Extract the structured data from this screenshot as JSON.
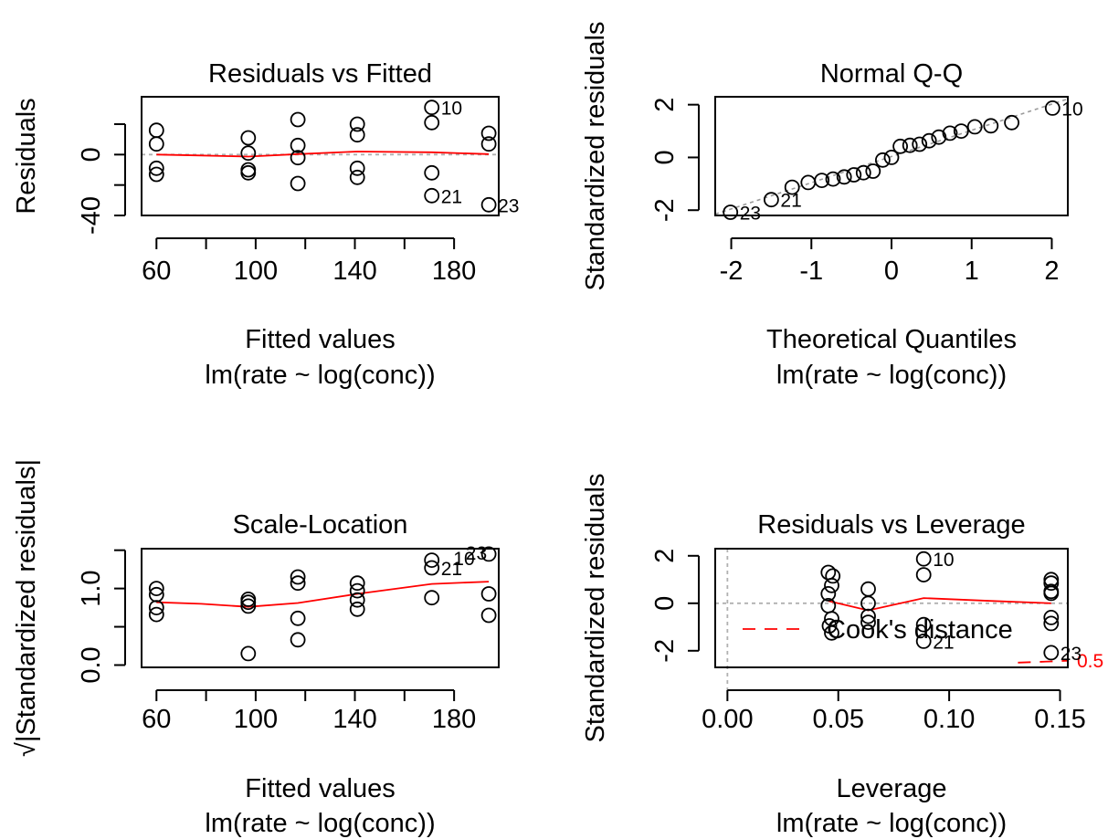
{
  "chart_data": [
    {
      "type": "scatter",
      "title": "Residuals vs Fitted",
      "xlabel": "Fitted values",
      "sublabel": "lm(rate ~ log(conc))",
      "ylabel": "Residuals",
      "xlim": [
        54,
        198
      ],
      "ylim": [
        -40,
        38
      ],
      "xticks": [
        60,
        80,
        100,
        120,
        140,
        160,
        180
      ],
      "xtick_labels": [
        "60",
        "",
        "100",
        "",
        "140",
        "",
        "180"
      ],
      "yticks": [
        -40,
        -20,
        0,
        20
      ],
      "ytick_labels": [
        "-40",
        "",
        "0",
        ""
      ],
      "points": [
        [
          60,
          16
        ],
        [
          60,
          7
        ],
        [
          60,
          -9
        ],
        [
          60,
          -13
        ],
        [
          97,
          11
        ],
        [
          97,
          1
        ],
        [
          97,
          -10
        ],
        [
          97,
          -12
        ],
        [
          117,
          23
        ],
        [
          117,
          6
        ],
        [
          117,
          -2
        ],
        [
          117,
          -19
        ],
        [
          141,
          20
        ],
        [
          141,
          13
        ],
        [
          141,
          -9
        ],
        [
          141,
          -15
        ],
        [
          171,
          31
        ],
        [
          171,
          21
        ],
        [
          171,
          -12
        ],
        [
          171,
          -27
        ],
        [
          194,
          14
        ],
        [
          194,
          7
        ],
        [
          194,
          -33
        ]
      ],
      "labels": [
        {
          "text": "10",
          "x": 171,
          "y": 31
        },
        {
          "text": "21",
          "x": 171,
          "y": -27
        },
        {
          "text": "23",
          "x": 194,
          "y": -33
        }
      ],
      "smooth": [
        [
          60,
          0
        ],
        [
          78,
          -0.6
        ],
        [
          97,
          -1.3
        ],
        [
          117,
          0.3
        ],
        [
          141,
          2
        ],
        [
          171,
          1.5
        ],
        [
          194,
          0.3
        ]
      ],
      "refline": 0
    },
    {
      "type": "scatter",
      "title": "Normal Q-Q",
      "xlabel": "Theoretical Quantiles",
      "sublabel": "lm(rate ~ log(conc))",
      "ylabel": "Standardized residuals",
      "xlim": [
        -2.2,
        2.2
      ],
      "ylim": [
        -2.2,
        2.3
      ],
      "xticks": [
        -2,
        -1,
        0,
        1,
        2
      ],
      "xtick_labels": [
        "-2",
        "-1",
        "0",
        "1",
        "2"
      ],
      "yticks": [
        -2,
        0,
        2
      ],
      "ytick_labels": [
        "-2",
        "0",
        "2"
      ],
      "points": [
        [
          -2.01,
          -2.08
        ],
        [
          -1.5,
          -1.6
        ],
        [
          -1.24,
          -1.13
        ],
        [
          -1.04,
          -0.95
        ],
        [
          -0.87,
          -0.87
        ],
        [
          -0.73,
          -0.82
        ],
        [
          -0.59,
          -0.74
        ],
        [
          -0.47,
          -0.66
        ],
        [
          -0.35,
          -0.58
        ],
        [
          -0.23,
          -0.52
        ],
        [
          -0.11,
          -0.1
        ],
        [
          0.0,
          0.0
        ],
        [
          0.11,
          0.42
        ],
        [
          0.23,
          0.46
        ],
        [
          0.35,
          0.5
        ],
        [
          0.47,
          0.63
        ],
        [
          0.59,
          0.77
        ],
        [
          0.73,
          0.92
        ],
        [
          0.87,
          1.0
        ],
        [
          1.04,
          1.16
        ],
        [
          1.24,
          1.2
        ],
        [
          1.5,
          1.32
        ],
        [
          2.01,
          1.87
        ]
      ],
      "labels": [
        {
          "text": "10",
          "x": 2.01,
          "y": 1.87
        },
        {
          "text": "21",
          "x": -1.5,
          "y": -1.6
        },
        {
          "text": "23",
          "x": -2.01,
          "y": -2.08
        }
      ],
      "qqline": [
        [
          -2.2,
          -2.15
        ],
        [
          2.2,
          2.22
        ]
      ]
    },
    {
      "type": "scatter",
      "title": "Scale-Location",
      "xlabel": "Fitted values",
      "sublabel": "lm(rate ~ log(conc))",
      "ylabel": "√|Standardized residuals|",
      "xlim": [
        54,
        198
      ],
      "ylim": [
        -0.03,
        1.52
      ],
      "xticks": [
        60,
        80,
        100,
        120,
        140,
        160,
        180
      ],
      "xtick_labels": [
        "60",
        "",
        "100",
        "",
        "140",
        "",
        "180"
      ],
      "yticks": [
        0.0,
        0.5,
        1.0,
        1.5
      ],
      "ytick_labels": [
        "0.0",
        "",
        "1.0",
        ""
      ],
      "points": [
        [
          60,
          1.0
        ],
        [
          60,
          0.92
        ],
        [
          60,
          0.75
        ],
        [
          60,
          0.66
        ],
        [
          97,
          0.86
        ],
        [
          97,
          0.82
        ],
        [
          97,
          0.77
        ],
        [
          97,
          0.15
        ],
        [
          117,
          1.15
        ],
        [
          117,
          1.07
        ],
        [
          117,
          0.61
        ],
        [
          117,
          0.33
        ],
        [
          141,
          1.07
        ],
        [
          141,
          0.97
        ],
        [
          141,
          0.85
        ],
        [
          141,
          0.73
        ],
        [
          171,
          1.37
        ],
        [
          171,
          1.27
        ],
        [
          171,
          0.88
        ],
        [
          194,
          1.45
        ],
        [
          194,
          0.93
        ],
        [
          194,
          0.65
        ]
      ],
      "labels": [
        {
          "text": "23",
          "x": 181,
          "y": 1.47
        },
        {
          "text": "10",
          "x": 176,
          "y": 1.4
        },
        {
          "text": "21",
          "x": 171,
          "y": 1.27
        }
      ],
      "smooth": [
        [
          60,
          0.82
        ],
        [
          78,
          0.8
        ],
        [
          97,
          0.76
        ],
        [
          117,
          0.81
        ],
        [
          141,
          0.93
        ],
        [
          171,
          1.06
        ],
        [
          194,
          1.09
        ]
      ]
    },
    {
      "type": "scatter",
      "title": "Residuals vs Leverage",
      "xlabel": "Leverage",
      "sublabel": "lm(rate ~ log(conc))",
      "ylabel": "Standardized residuals",
      "xlim": [
        -0.0055,
        0.1535
      ],
      "ylim": [
        -2.7,
        2.3
      ],
      "xticks": [
        0.0,
        0.05,
        0.1,
        0.15
      ],
      "xtick_labels": [
        "0.00",
        "0.05",
        "0.10",
        "0.15"
      ],
      "yticks": [
        -2,
        0,
        2
      ],
      "ytick_labels": [
        "-2",
        "0",
        "2"
      ],
      "points": [
        [
          0.0455,
          1.3
        ],
        [
          0.0475,
          1.15
        ],
        [
          0.047,
          0.75
        ],
        [
          0.0455,
          0.4
        ],
        [
          0.0455,
          -0.1
        ],
        [
          0.047,
          -0.65
        ],
        [
          0.046,
          -0.95
        ],
        [
          0.047,
          -1.25
        ],
        [
          0.0635,
          0.6
        ],
        [
          0.0635,
          0.0
        ],
        [
          0.0635,
          -0.55
        ],
        [
          0.0635,
          -0.8
        ],
        [
          0.0885,
          1.87
        ],
        [
          0.0885,
          1.2
        ],
        [
          0.0885,
          -0.9
        ],
        [
          0.0885,
          -1.6
        ],
        [
          0.146,
          1.0
        ],
        [
          0.146,
          0.85
        ],
        [
          0.146,
          0.5
        ],
        [
          0.146,
          0.42
        ],
        [
          0.146,
          -0.6
        ],
        [
          0.146,
          -0.85
        ],
        [
          0.146,
          -2.08
        ]
      ],
      "labels": [
        {
          "text": "10",
          "x": 0.0885,
          "y": 1.87
        },
        {
          "text": "21",
          "x": 0.0885,
          "y": -1.6
        },
        {
          "text": "23",
          "x": 0.146,
          "y": -2.08
        }
      ],
      "smooth": [
        [
          0.0455,
          0.1
        ],
        [
          0.0635,
          -0.3
        ],
        [
          0.0885,
          0.22
        ],
        [
          0.1185,
          0.1
        ],
        [
          0.146,
          0.0
        ]
      ],
      "refline": 0,
      "vline": 0,
      "legend": {
        "text": "Cook's distance",
        "position": "bottom-left"
      },
      "cook_label": "0.5",
      "cook_curve": [
        [
          0.131,
          -2.5
        ],
        [
          0.146,
          -2.45
        ],
        [
          0.1535,
          -2.42
        ]
      ]
    }
  ]
}
